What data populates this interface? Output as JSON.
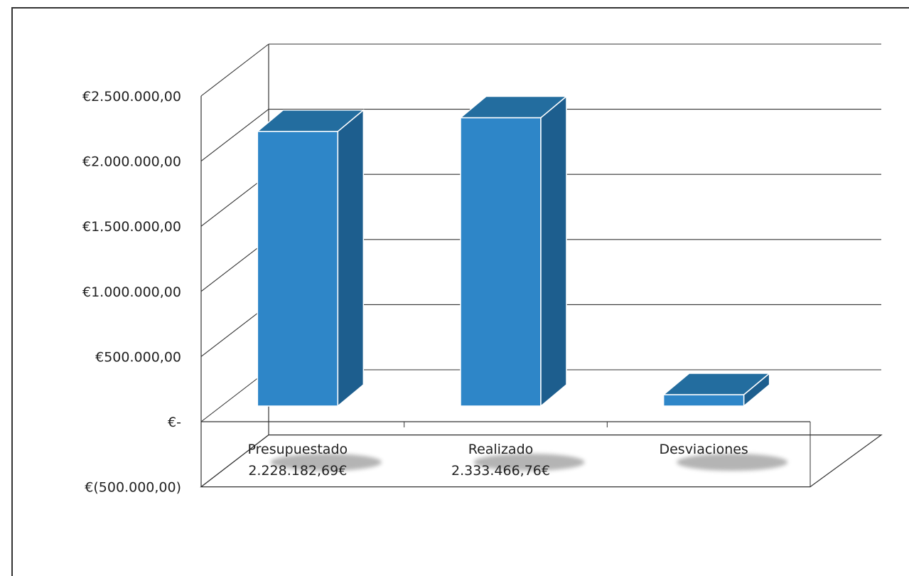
{
  "chart_data": {
    "type": "bar",
    "categories": [
      "Presupuestado",
      "Realizado",
      "Desviaciones"
    ],
    "category_sublabels": [
      "2.228.182,69€",
      "2.333.466,76€",
      ""
    ],
    "values": [
      2228182.69,
      2333466.76,
      105284.07
    ],
    "ylim": [
      -500000,
      2500000
    ],
    "y_ticks": [
      2500000,
      2000000,
      1500000,
      1000000,
      500000,
      0,
      -500000
    ],
    "y_tick_labels": [
      "€2.500.000,00",
      "€2.000.000,00",
      "€1.500.000,00",
      "€1.000.000,00",
      "€500.000,00",
      "€-",
      "€(500.000,00)"
    ],
    "title": "",
    "xlabel": "",
    "ylabel": "",
    "grid": true,
    "style": "3d-column",
    "bar_color": "#2e86c8",
    "bar_side_color": "#1d5e8e",
    "bar_top_color": "#236d9f"
  }
}
